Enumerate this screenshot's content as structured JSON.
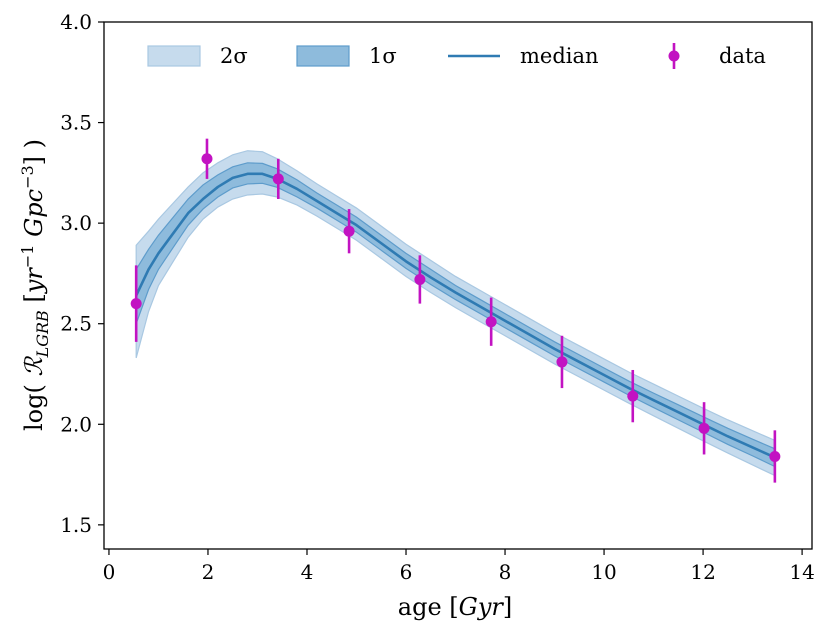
{
  "chart_data": {
    "type": "line",
    "xlabel": "age [Gyr]",
    "ylabel": "log( R_LGRB [yr⁻¹ Gpc⁻³] )",
    "xlim": [
      -0.1,
      14.2
    ],
    "ylim": [
      1.38,
      4.0
    ],
    "xticks": [
      0,
      2,
      4,
      6,
      8,
      10,
      12,
      14
    ],
    "yticks": [
      1.5,
      2.0,
      2.5,
      3.0,
      3.5,
      4.0
    ],
    "xtick_labels": [
      "0",
      "2",
      "4",
      "6",
      "8",
      "10",
      "12",
      "14"
    ],
    "ytick_labels": [
      "1.5",
      "2.0",
      "2.5",
      "3.0",
      "3.5",
      "4.0"
    ],
    "grid": false,
    "legend_position": "top",
    "legend": [
      {
        "key": "band2",
        "label": "2σ"
      },
      {
        "key": "band1",
        "label": "1σ"
      },
      {
        "key": "median",
        "label": "median"
      },
      {
        "key": "data",
        "label": "data"
      }
    ],
    "colors": {
      "band2": "#c6dbed",
      "band2_edge": "#a9c8e2",
      "band1": "#8ebbdc",
      "band1_edge": "#5e9ccb",
      "median": "#2f7bb3",
      "data": "#c213c2"
    },
    "series": [
      {
        "name": "median",
        "x": [
          0.55,
          0.8,
          1.0,
          1.3,
          1.6,
          1.9,
          2.2,
          2.5,
          2.8,
          3.1,
          3.4,
          3.8,
          4.2,
          4.6,
          5.0,
          5.5,
          6.0,
          6.5,
          7.0,
          7.5,
          8.0,
          8.5,
          9.0,
          9.5,
          10.0,
          10.5,
          11.0,
          11.5,
          12.0,
          12.5,
          13.0,
          13.45
        ],
        "median": [
          2.64,
          2.77,
          2.85,
          2.95,
          3.05,
          3.12,
          3.18,
          3.225,
          3.245,
          3.245,
          3.22,
          3.17,
          3.11,
          3.05,
          2.99,
          2.9,
          2.81,
          2.73,
          2.655,
          2.585,
          2.515,
          2.445,
          2.375,
          2.31,
          2.245,
          2.18,
          2.12,
          2.06,
          2.0,
          1.94,
          1.885,
          1.835
        ],
        "lower_1sigma": [
          2.5,
          2.67,
          2.77,
          2.88,
          2.99,
          3.07,
          3.13,
          3.175,
          3.195,
          3.198,
          3.178,
          3.13,
          3.075,
          3.015,
          2.955,
          2.865,
          2.775,
          2.695,
          2.62,
          2.55,
          2.48,
          2.41,
          2.34,
          2.275,
          2.21,
          2.145,
          2.083,
          2.022,
          1.961,
          1.9,
          1.843,
          1.79
        ],
        "upper_1sigma": [
          2.77,
          2.87,
          2.94,
          3.03,
          3.12,
          3.19,
          3.24,
          3.28,
          3.3,
          3.297,
          3.27,
          3.215,
          3.15,
          3.09,
          3.03,
          2.94,
          2.85,
          2.77,
          2.69,
          2.62,
          2.55,
          2.48,
          2.41,
          2.345,
          2.28,
          2.215,
          2.155,
          2.097,
          2.038,
          1.98,
          1.926,
          1.878
        ],
        "lower_2sigma": [
          2.33,
          2.56,
          2.69,
          2.81,
          2.93,
          3.02,
          3.08,
          3.12,
          3.14,
          3.145,
          3.13,
          3.09,
          3.035,
          2.975,
          2.915,
          2.825,
          2.735,
          2.655,
          2.58,
          2.51,
          2.44,
          2.37,
          2.3,
          2.235,
          2.17,
          2.105,
          2.042,
          1.98,
          1.918,
          1.857,
          1.798,
          1.745
        ],
        "upper_2sigma": [
          2.89,
          2.96,
          3.02,
          3.1,
          3.18,
          3.25,
          3.3,
          3.34,
          3.36,
          3.355,
          3.32,
          3.26,
          3.195,
          3.135,
          3.075,
          2.985,
          2.895,
          2.815,
          2.735,
          2.665,
          2.595,
          2.525,
          2.455,
          2.39,
          2.325,
          2.26,
          2.2,
          2.14,
          2.08,
          2.022,
          1.968,
          1.92
        ]
      },
      {
        "name": "data",
        "x": [
          0.55,
          1.98,
          3.42,
          4.85,
          6.28,
          7.72,
          9.15,
          10.58,
          12.02,
          13.45
        ],
        "y": [
          2.6,
          3.32,
          3.22,
          2.96,
          2.72,
          2.51,
          2.31,
          2.14,
          1.98,
          1.84
        ],
        "yerr": [
          0.19,
          0.1,
          0.1,
          0.11,
          0.12,
          0.12,
          0.13,
          0.13,
          0.13,
          0.13
        ]
      }
    ]
  }
}
